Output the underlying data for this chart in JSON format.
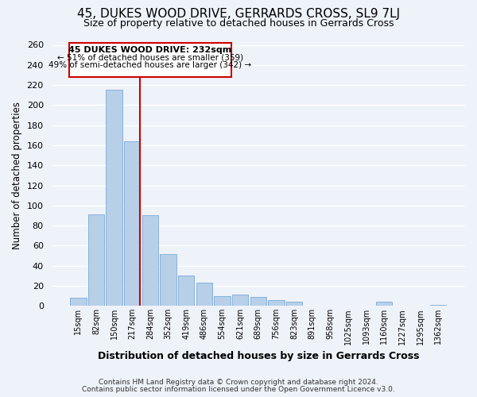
{
  "title": "45, DUKES WOOD DRIVE, GERRARDS CROSS, SL9 7LJ",
  "subtitle": "Size of property relative to detached houses in Gerrards Cross",
  "xlabel": "Distribution of detached houses by size in Gerrards Cross",
  "ylabel": "Number of detached properties",
  "bar_labels": [
    "15sqm",
    "82sqm",
    "150sqm",
    "217sqm",
    "284sqm",
    "352sqm",
    "419sqm",
    "486sqm",
    "554sqm",
    "621sqm",
    "689sqm",
    "756sqm",
    "823sqm",
    "891sqm",
    "958sqm",
    "1025sqm",
    "1093sqm",
    "1160sqm",
    "1227sqm",
    "1295sqm",
    "1362sqm"
  ],
  "bar_values": [
    8,
    91,
    215,
    164,
    90,
    52,
    30,
    23,
    10,
    11,
    9,
    6,
    4,
    0,
    0,
    0,
    0,
    4,
    0,
    0,
    1
  ],
  "bar_color": "#b8cfe8",
  "bar_edge_color": "#7aabdb",
  "vline_color": "#cc0000",
  "ylim": [
    0,
    260
  ],
  "yticks": [
    0,
    20,
    40,
    60,
    80,
    100,
    120,
    140,
    160,
    180,
    200,
    220,
    240,
    260
  ],
  "annotation_title": "45 DUKES WOOD DRIVE: 232sqm",
  "annotation_line1": "← 51% of detached houses are smaller (359)",
  "annotation_line2": "49% of semi-detached houses are larger (342) →",
  "footer1": "Contains HM Land Registry data © Crown copyright and database right 2024.",
  "footer2": "Contains public sector information licensed under the Open Government Licence v3.0.",
  "background_color": "#eef2f9"
}
